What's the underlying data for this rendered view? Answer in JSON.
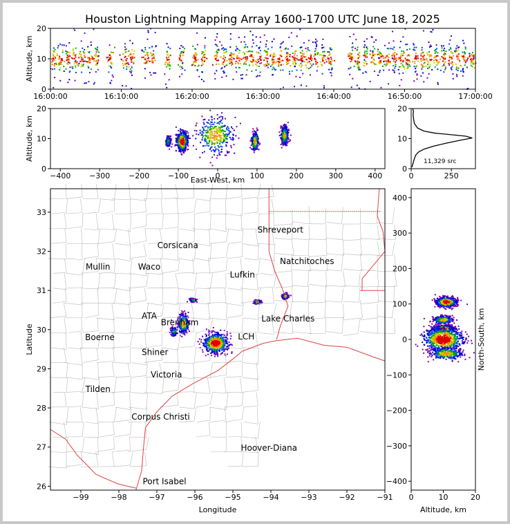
{
  "chart_data": [
    {
      "panel": "altitude-time",
      "type": "scatter",
      "title": "Houston Lightning Mapping Array 1600-1700 UTC June 18, 2025",
      "ylabel": "Altitude, km",
      "xlim": [
        "16:00:00",
        "17:00:00"
      ],
      "ylim": [
        0,
        20
      ],
      "x_ticks": [
        "16:00:00",
        "16:10:00",
        "16:20:00",
        "16:30:00",
        "16:40:00",
        "16:50:00",
        "17:00:00"
      ],
      "y_ticks": [
        0,
        10,
        20
      ],
      "active_minutes": [
        0,
        1,
        2,
        3,
        4,
        5,
        6,
        8,
        10,
        11,
        13,
        14,
        16,
        18,
        20,
        21,
        23,
        24,
        25,
        26,
        27,
        28,
        29,
        30,
        31,
        32,
        33,
        34,
        35,
        36,
        37,
        38,
        39,
        42,
        43,
        44,
        45,
        46,
        47,
        48,
        49,
        50,
        51,
        52,
        53,
        54,
        55,
        56,
        57,
        58,
        59
      ],
      "core_altitude_km": [
        6,
        14
      ]
    },
    {
      "panel": "altitude-eastwest",
      "type": "scatter",
      "xlabel": "East-West, km",
      "ylabel": "Altitude, km",
      "xlim": [
        -425,
        425
      ],
      "ylim": [
        0,
        20
      ],
      "x_ticks": [
        -400,
        -300,
        -200,
        -100,
        0,
        100,
        200,
        300,
        400
      ],
      "y_ticks": [
        0,
        10,
        20
      ],
      "clusters": [
        {
          "x": -90,
          "x_spread": 12,
          "z": 9,
          "z_spread": 3,
          "density": "high"
        },
        {
          "x": -125,
          "x_spread": 6,
          "z": 9,
          "z_spread": 2,
          "density": "low"
        },
        {
          "x": -5,
          "x_spread": 45,
          "z": 11,
          "z_spread": 6,
          "density": "medium"
        },
        {
          "x": 95,
          "x_spread": 8,
          "z": 9,
          "z_spread": 3,
          "density": "medium"
        },
        {
          "x": 170,
          "x_spread": 8,
          "z": 11,
          "z_spread": 3,
          "density": "medium"
        }
      ]
    },
    {
      "panel": "altitude-histogram",
      "type": "line",
      "xlim": [
        0,
        400
      ],
      "ylim": [
        0,
        20
      ],
      "x_ticks": [
        0,
        250
      ],
      "y_ticks": [
        0,
        10,
        20
      ],
      "annotation": "11,329 src",
      "points": [
        [
          5,
          0.5
        ],
        [
          10,
          1.5
        ],
        [
          18,
          3
        ],
        [
          28,
          4.5
        ],
        [
          45,
          5.5
        ],
        [
          80,
          6.5
        ],
        [
          140,
          7.5
        ],
        [
          220,
          8.5
        ],
        [
          310,
          9.5
        ],
        [
          380,
          10.2
        ],
        [
          340,
          10.8
        ],
        [
          250,
          11.3
        ],
        [
          150,
          11.8
        ],
        [
          80,
          12.5
        ],
        [
          40,
          13.5
        ],
        [
          20,
          15
        ],
        [
          15,
          16.5
        ],
        [
          12,
          18
        ],
        [
          14,
          19
        ],
        [
          10,
          20
        ]
      ]
    },
    {
      "panel": "plan-view-map",
      "type": "scatter",
      "xlabel": "Longitude",
      "ylabel": "Latitude",
      "xlim": [
        -99.8,
        -91
      ],
      "ylim": [
        25.9,
        33.6
      ],
      "x_ticks": [
        -99,
        -98,
        -97,
        -96,
        -95,
        -94,
        -93,
        -92,
        -91
      ],
      "y_ticks": [
        26,
        27,
        28,
        29,
        30,
        31,
        32,
        33
      ],
      "clusters": [
        {
          "lon": -95.45,
          "lat": 29.65,
          "lon_spread": 0.28,
          "lat_spread": 0.22,
          "density": "high"
        },
        {
          "lon": -96.3,
          "lat": 30.15,
          "lon_spread": 0.12,
          "lat_spread": 0.22,
          "density": "medium"
        },
        {
          "lon": -96.55,
          "lat": 29.95,
          "lon_spread": 0.08,
          "lat_spread": 0.1,
          "density": "low"
        },
        {
          "lon": -94.35,
          "lat": 30.7,
          "lon_spread": 0.07,
          "lat_spread": 0.04,
          "density": "medium"
        },
        {
          "lon": -93.62,
          "lat": 30.85,
          "lon_spread": 0.07,
          "lat_spread": 0.05,
          "density": "medium"
        },
        {
          "lon": -96.05,
          "lat": 30.75,
          "lon_spread": 0.08,
          "lat_spread": 0.04,
          "density": "low"
        }
      ],
      "cities": [
        {
          "name": "Shreveport",
          "lon": -93.75,
          "lat": 32.55,
          "color": "#000000"
        },
        {
          "name": "Corsicana",
          "lon": -96.45,
          "lat": 32.15,
          "color": "#000000"
        },
        {
          "name": "Mullin",
          "lon": -98.55,
          "lat": 31.6,
          "color": "#e8825a"
        },
        {
          "name": "Waco",
          "lon": -97.2,
          "lat": 31.6,
          "color": "#000000"
        },
        {
          "name": "Natchitoches",
          "lon": -93.05,
          "lat": 31.75,
          "color": "#000000"
        },
        {
          "name": "Lufkin",
          "lon": -94.75,
          "lat": 31.4,
          "color": "#000000"
        },
        {
          "name": "ATA",
          "lon": -97.2,
          "lat": 30.35,
          "color": "#e8825a"
        },
        {
          "name": "Brenham",
          "lon": -96.4,
          "lat": 30.18,
          "color": "#000000"
        },
        {
          "name": "Lake Charles",
          "lon": -93.55,
          "lat": 30.28,
          "color": "#000000"
        },
        {
          "name": "Boerne",
          "lon": -98.5,
          "lat": 29.8,
          "color": "#000000"
        },
        {
          "name": "LCH",
          "lon": -94.65,
          "lat": 29.82,
          "color": "#f0a030"
        },
        {
          "name": "Shiner",
          "lon": -97.05,
          "lat": 29.42,
          "color": "#000000"
        },
        {
          "name": "Victoria",
          "lon": -96.75,
          "lat": 28.85,
          "color": "#000000"
        },
        {
          "name": "Tilden",
          "lon": -98.55,
          "lat": 28.48,
          "color": "#000000"
        },
        {
          "name": "Corpus Christi",
          "lon": -96.9,
          "lat": 27.77,
          "color": "#000000"
        },
        {
          "name": "Hoover-Diana",
          "lon": -94.05,
          "lat": 26.98,
          "color": "#2020e0"
        },
        {
          "name": "Port Isabel",
          "lon": -96.8,
          "lat": 26.12,
          "color": "#000000"
        }
      ]
    },
    {
      "panel": "northsouth-altitude",
      "type": "scatter",
      "xlabel": "Altitude, km",
      "ylabel": "North-South, km",
      "xlim": [
        0,
        20
      ],
      "ylim": [
        -425,
        425
      ],
      "x_ticks": [
        0,
        10,
        20
      ],
      "y_ticks": [
        -400,
        -300,
        -200,
        -100,
        0,
        100,
        200,
        300,
        400
      ],
      "clusters": [
        {
          "y": 105,
          "y_spread": 12,
          "z": 11,
          "z_spread": 3,
          "density": "high"
        },
        {
          "y": 55,
          "y_spread": 10,
          "z": 10,
          "z_spread": 3,
          "density": "medium"
        },
        {
          "y": 30,
          "y_spread": 8,
          "z": 10,
          "z_spread": 3,
          "density": "high"
        },
        {
          "y": 0,
          "y_spread": 30,
          "z": 10,
          "z_spread": 6,
          "density": "high"
        },
        {
          "y": -40,
          "y_spread": 15,
          "z": 11,
          "z_spread": 5,
          "density": "medium"
        }
      ]
    }
  ]
}
